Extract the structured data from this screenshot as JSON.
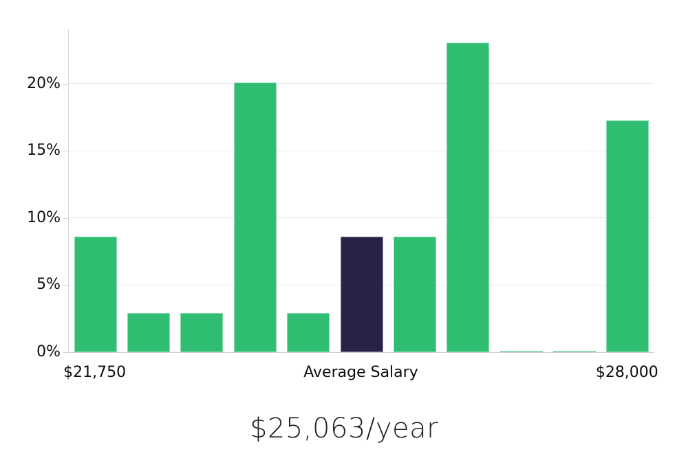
{
  "title": "$25,063/year",
  "colors": {
    "bar_green": "#2ebd71",
    "bar_highlight_navy": "#272347",
    "gridline": "#e8e8e8",
    "axis": "#cfcfcf",
    "tick_text": "#0d0d0d",
    "title_text": "#1f1f1f",
    "background": "#ffffff"
  },
  "chart_data": {
    "type": "bar",
    "title": "$25,063/year",
    "xlabel": "",
    "ylabel": "",
    "values": [
      8.6,
      2.9,
      2.9,
      20.1,
      2.9,
      8.6,
      8.6,
      23.1,
      0.1,
      0.1,
      17.3
    ],
    "highlight_index": 5,
    "highlight_meaning": "Average Salary",
    "y_ticks": [
      {
        "value": 0,
        "label": "0%"
      },
      {
        "value": 5,
        "label": "5%"
      },
      {
        "value": 10,
        "label": "10%"
      },
      {
        "value": 15,
        "label": "15%"
      },
      {
        "value": 20,
        "label": "20%"
      }
    ],
    "x_tick_labels": [
      {
        "bar_index": 0,
        "label": "$21,750"
      },
      {
        "bar_index": 5,
        "label": "Average Salary"
      },
      {
        "bar_index": 10,
        "label": "$28,000"
      }
    ],
    "ylim": [
      0,
      24.1
    ],
    "grid": true,
    "legend": false
  }
}
